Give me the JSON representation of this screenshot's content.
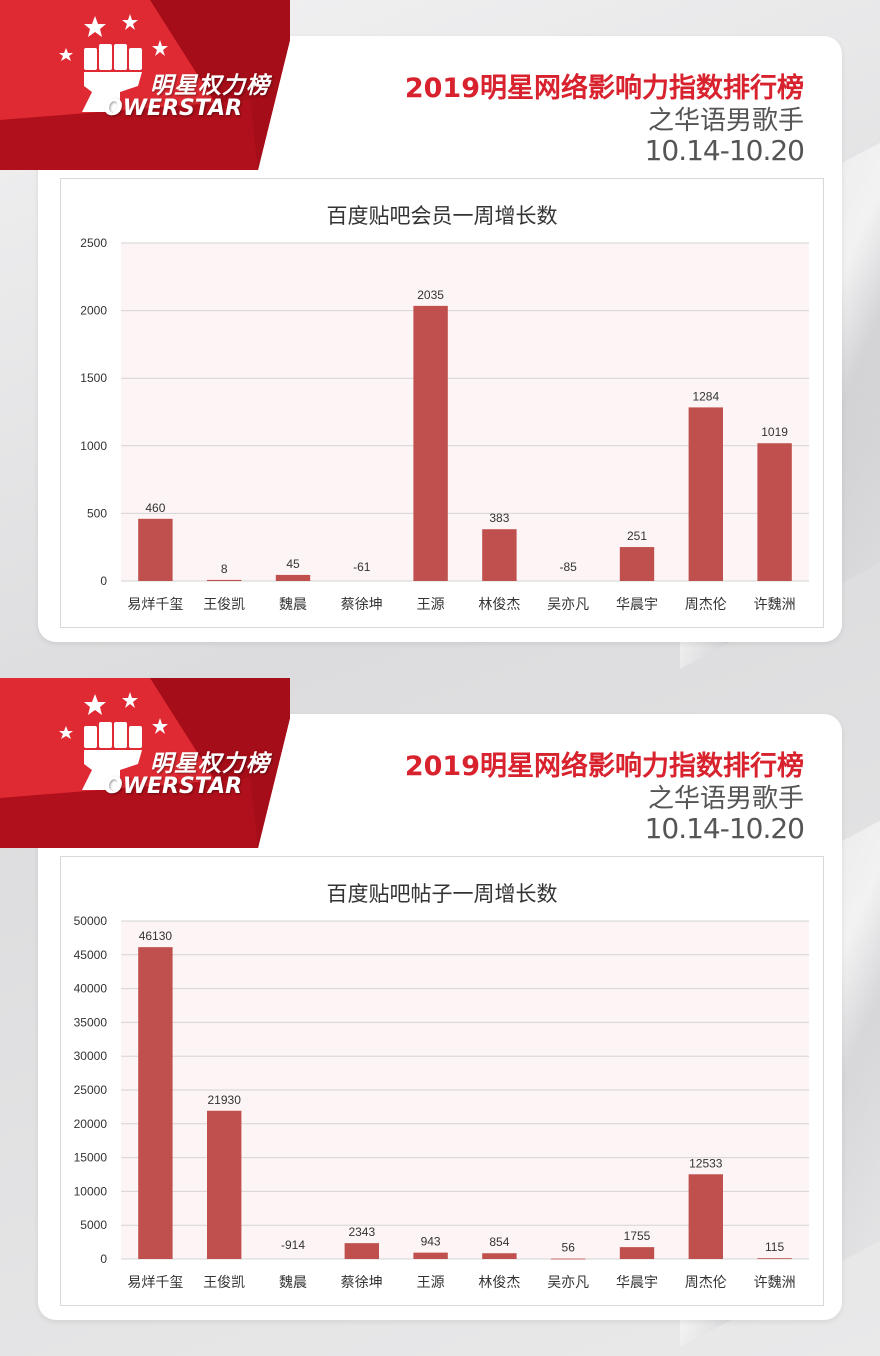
{
  "brand": {
    "logo_cn": "明星权力榜",
    "logo_en": "OWERSTAR",
    "title": "2019明星网络影响力指数排行榜",
    "subtitle": "之华语男歌手",
    "date_range": "10.14-10.20",
    "colors": {
      "red": "#d8222e",
      "bar": "#c0504d",
      "plot_bg": "#fdf5f5"
    }
  },
  "chart_data": [
    {
      "type": "bar",
      "title": "百度贴吧会员一周增长数",
      "categories": [
        "易烊千玺",
        "王俊凯",
        "魏晨",
        "蔡徐坤",
        "王源",
        "林俊杰",
        "吴亦凡",
        "华晨宇",
        "周杰伦",
        "许魏洲"
      ],
      "values": [
        460,
        8,
        45,
        -61,
        2035,
        383,
        -85,
        251,
        1284,
        1019
      ],
      "ylim": [
        0,
        2500
      ],
      "yticks": [
        0,
        500,
        1000,
        1500,
        2000,
        2500
      ],
      "grid": true,
      "xlabel": "",
      "ylabel": ""
    },
    {
      "type": "bar",
      "title": "百度贴吧帖子一周增长数",
      "categories": [
        "易烊千玺",
        "王俊凯",
        "魏晨",
        "蔡徐坤",
        "王源",
        "林俊杰",
        "吴亦凡",
        "华晨宇",
        "周杰伦",
        "许魏洲"
      ],
      "values": [
        46130,
        21930,
        -914,
        2343,
        943,
        854,
        56,
        1755,
        12533,
        115
      ],
      "ylim": [
        0,
        50000
      ],
      "yticks": [
        0,
        5000,
        10000,
        15000,
        20000,
        25000,
        30000,
        35000,
        40000,
        45000,
        50000
      ],
      "grid": true,
      "xlabel": "",
      "ylabel": ""
    }
  ]
}
